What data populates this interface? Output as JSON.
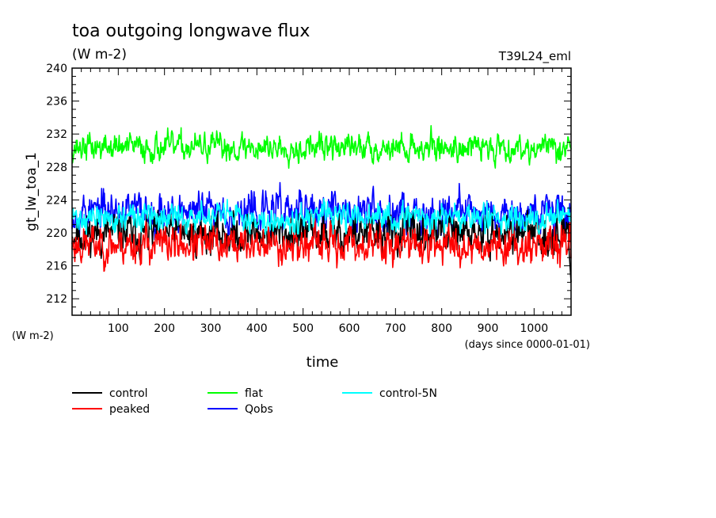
{
  "chart_data": {
    "type": "line",
    "title": "toa outgoing longwave flux",
    "units": "(W m-2)",
    "run_label": "T39L24_eml",
    "ylabel": "gt_lw_toa_1",
    "ylabel_units": "(W m-2)",
    "xlabel": "time",
    "xlabel_units": "(days since 0000-01-01)",
    "xlim": [
      0,
      1080
    ],
    "ylim": [
      210,
      240
    ],
    "x_major_ticks": [
      100,
      200,
      300,
      400,
      500,
      600,
      700,
      800,
      900,
      1000
    ],
    "y_major_ticks": [
      212,
      216,
      220,
      224,
      228,
      232,
      236,
      240
    ],
    "grid": false,
    "legend_placement": "bottom",
    "series": [
      {
        "name": "control",
        "color": "#000000",
        "mean": 219.9,
        "amplitude": 1.6,
        "min": 214.0,
        "max": 222.8
      },
      {
        "name": "peaked",
        "color": "#ff0000",
        "mean": 218.6,
        "amplitude": 1.5,
        "min": 214.8,
        "max": 221.8
      },
      {
        "name": "flat",
        "color": "#00ff00",
        "mean": 230.4,
        "amplitude": 1.1,
        "min": 227.8,
        "max": 233.6
      },
      {
        "name": "Qobs",
        "color": "#0000ff",
        "mean": 222.6,
        "amplitude": 1.6,
        "min": 219.0,
        "max": 227.3
      },
      {
        "name": "control-5N",
        "color": "#00ffff",
        "mean": 221.8,
        "amplitude": 1.1,
        "min": 219.8,
        "max": 224.8
      }
    ]
  }
}
